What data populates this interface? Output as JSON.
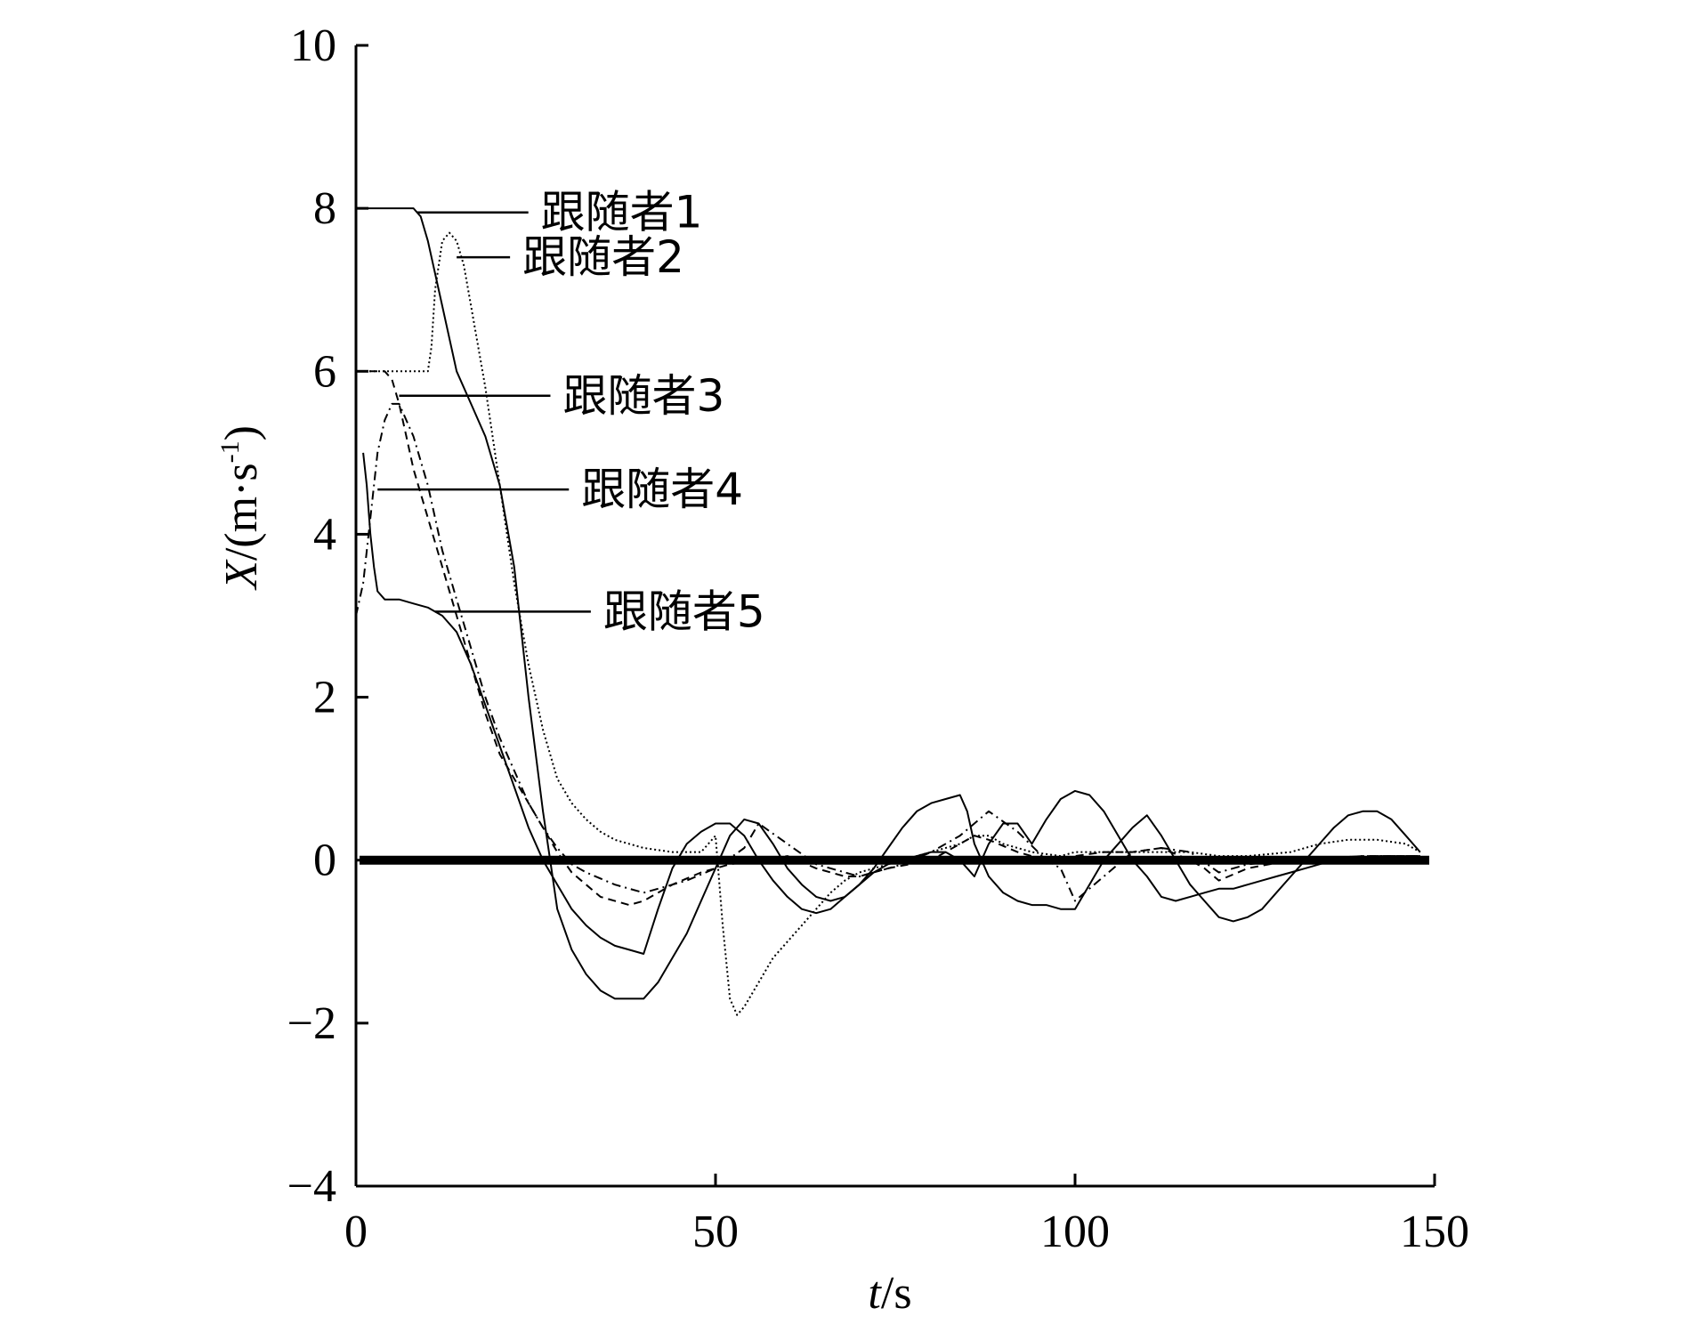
{
  "chart_data": {
    "type": "line",
    "title": "",
    "xlabel": {
      "italic": "t",
      "rest": "/s"
    },
    "ylabel": {
      "italic": "X",
      "rest": "/(m·s",
      "sup": "-1",
      "close": ")"
    },
    "xlim": [
      0,
      150
    ],
    "ylim": [
      -4,
      10
    ],
    "xticks": [
      0,
      50,
      100,
      150
    ],
    "xtick_labels": [
      "0",
      "50",
      "100",
      "150"
    ],
    "yticks": [
      -4,
      -2,
      0,
      2,
      4,
      6,
      8,
      10
    ],
    "ytick_labels": [
      "−4",
      "−2",
      "0",
      "2",
      "4",
      "6",
      "8",
      "10"
    ],
    "grid": false,
    "legend": "none",
    "reference_line": {
      "y": 0,
      "color": "#000000"
    },
    "series": [
      {
        "name": "跟随者1",
        "style": "solid",
        "x": [
          0,
          8,
          9,
          10,
          11,
          12,
          14,
          16,
          18,
          20,
          22,
          24,
          26,
          27,
          28,
          30,
          32,
          34,
          36,
          38,
          40,
          42,
          44,
          46,
          48,
          50,
          52,
          54,
          56,
          58,
          60,
          62,
          64,
          66,
          68,
          70,
          72,
          74,
          76,
          78,
          80,
          82,
          84,
          85,
          86,
          88,
          90,
          92,
          94,
          96,
          98,
          100,
          102,
          104,
          106,
          108,
          110,
          112,
          114,
          116,
          118,
          120,
          122,
          124,
          126,
          128,
          130,
          132,
          134,
          136,
          138,
          140,
          142,
          144,
          146,
          148
        ],
        "y": [
          8.0,
          8.0,
          7.9,
          7.6,
          7.2,
          6.8,
          6.0,
          5.6,
          5.2,
          4.6,
          3.6,
          2.0,
          0.6,
          0.0,
          -0.6,
          -1.1,
          -1.4,
          -1.6,
          -1.7,
          -1.7,
          -1.7,
          -1.5,
          -1.2,
          -0.9,
          -0.5,
          -0.1,
          0.3,
          0.5,
          0.45,
          0.2,
          -0.1,
          -0.3,
          -0.45,
          -0.5,
          -0.45,
          -0.3,
          -0.1,
          0.15,
          0.4,
          0.6,
          0.7,
          0.75,
          0.8,
          0.6,
          0.2,
          -0.2,
          -0.4,
          -0.5,
          -0.55,
          -0.55,
          -0.6,
          -0.6,
          -0.3,
          0.0,
          0.2,
          0.4,
          0.55,
          0.3,
          0.0,
          -0.3,
          -0.5,
          -0.7,
          -0.75,
          -0.7,
          -0.6,
          -0.4,
          -0.2,
          0.0,
          0.2,
          0.4,
          0.55,
          0.6,
          0.6,
          0.5,
          0.3,
          0.1
        ]
      },
      {
        "name": "跟随者2",
        "style": "dotted",
        "x": [
          0,
          10,
          10.5,
          11,
          12,
          13,
          14,
          15,
          16,
          18,
          20,
          22,
          24,
          26,
          28,
          30,
          32,
          34,
          36,
          38,
          40,
          44,
          48,
          50,
          51,
          52,
          53,
          54,
          56,
          58,
          60,
          62,
          64,
          66,
          68,
          70,
          72,
          74,
          76,
          78,
          80,
          84,
          86,
          88,
          90,
          94,
          98,
          100,
          104,
          108,
          112,
          116,
          120,
          124,
          130,
          134,
          138,
          142,
          146,
          148
        ],
        "y": [
          6.0,
          6.0,
          6.3,
          7.0,
          7.6,
          7.7,
          7.6,
          7.3,
          6.8,
          5.8,
          4.6,
          3.4,
          2.4,
          1.6,
          1.0,
          0.7,
          0.5,
          0.35,
          0.25,
          0.2,
          0.15,
          0.1,
          0.1,
          0.3,
          -0.8,
          -1.7,
          -1.9,
          -1.8,
          -1.5,
          -1.2,
          -1.0,
          -0.8,
          -0.6,
          -0.4,
          -0.25,
          -0.15,
          -0.1,
          -0.05,
          0.0,
          0.05,
          0.1,
          0.2,
          0.3,
          0.3,
          0.2,
          0.1,
          0.05,
          0.1,
          0.1,
          0.1,
          0.1,
          0.1,
          0.05,
          0.05,
          0.1,
          0.2,
          0.25,
          0.25,
          0.2,
          0.1
        ]
      },
      {
        "name": "跟随者3",
        "style": "dashed",
        "x": [
          0,
          4,
          5,
          6,
          7,
          8,
          10,
          12,
          14,
          16,
          18,
          20,
          22,
          24,
          26,
          28,
          30,
          34,
          38,
          40,
          44,
          48,
          52,
          56,
          60,
          64,
          68,
          70,
          74,
          80,
          84,
          86,
          88,
          92,
          96,
          100,
          104,
          108,
          112,
          116,
          118,
          120,
          124,
          130,
          140,
          148
        ],
        "y": [
          6.0,
          6.0,
          5.9,
          5.6,
          5.2,
          4.8,
          4.2,
          3.6,
          3.0,
          2.4,
          1.8,
          1.3,
          1.0,
          0.7,
          0.4,
          0.1,
          -0.15,
          -0.45,
          -0.55,
          -0.5,
          -0.3,
          -0.15,
          -0.05,
          0.0,
          0.05,
          -0.1,
          -0.2,
          -0.2,
          -0.1,
          0.0,
          0.2,
          0.3,
          0.25,
          0.1,
          0.0,
          0.05,
          0.1,
          0.1,
          0.15,
          0.0,
          -0.1,
          -0.25,
          -0.1,
          0.0,
          0.05,
          0.05
        ]
      },
      {
        "name": "跟随者4",
        "style": "dashdot",
        "x": [
          0,
          1,
          2,
          3,
          4,
          5,
          6,
          8,
          10,
          12,
          14,
          16,
          18,
          20,
          22,
          24,
          26,
          28,
          30,
          32,
          36,
          40,
          42,
          46,
          50,
          54,
          56,
          60,
          64,
          68,
          70,
          72,
          76,
          80,
          84,
          88,
          92,
          96,
          98,
          100,
          104,
          108,
          112,
          116,
          120,
          124,
          130,
          140,
          148
        ],
        "y": [
          3.0,
          3.4,
          4.2,
          5.0,
          5.4,
          5.6,
          5.6,
          5.2,
          4.6,
          3.8,
          3.2,
          2.6,
          2.0,
          1.5,
          1.1,
          0.7,
          0.4,
          0.15,
          -0.05,
          -0.15,
          -0.3,
          -0.4,
          -0.35,
          -0.25,
          -0.1,
          0.15,
          0.45,
          0.2,
          -0.05,
          -0.15,
          -0.2,
          -0.15,
          -0.05,
          0.1,
          0.3,
          0.6,
          0.35,
          0.0,
          -0.1,
          -0.5,
          -0.2,
          0.1,
          0.15,
          0.1,
          -0.15,
          -0.05,
          0.0,
          0.05,
          0.05
        ]
      },
      {
        "name": "跟随者5",
        "style": "solid",
        "x": [
          1,
          1.5,
          2,
          2.5,
          3,
          4,
          6,
          8,
          10,
          12,
          14,
          16,
          18,
          20,
          22,
          24,
          26,
          28,
          30,
          32,
          34,
          36,
          38,
          40,
          42,
          44,
          46,
          48,
          50,
          52,
          54,
          56,
          58,
          60,
          62,
          64,
          66,
          68,
          70,
          72,
          74,
          76,
          78,
          80,
          82,
          84,
          86,
          88,
          90,
          92,
          94,
          96,
          98,
          100,
          102,
          104,
          106,
          108,
          110,
          112,
          114,
          116,
          118,
          120,
          122,
          124,
          126,
          128,
          130,
          132,
          134,
          136,
          138,
          140,
          142,
          144,
          146,
          148
        ],
        "y": [
          5.0,
          4.6,
          4.0,
          3.6,
          3.3,
          3.2,
          3.2,
          3.15,
          3.1,
          3.0,
          2.8,
          2.4,
          1.9,
          1.4,
          0.9,
          0.4,
          0.0,
          -0.3,
          -0.6,
          -0.8,
          -0.95,
          -1.05,
          -1.1,
          -1.15,
          -0.6,
          -0.1,
          0.2,
          0.35,
          0.45,
          0.45,
          0.3,
          0.0,
          -0.25,
          -0.45,
          -0.6,
          -0.65,
          -0.6,
          -0.45,
          -0.3,
          -0.15,
          -0.05,
          0.0,
          0.05,
          0.1,
          0.1,
          0.0,
          -0.2,
          0.2,
          0.45,
          0.45,
          0.2,
          0.5,
          0.75,
          0.85,
          0.8,
          0.6,
          0.3,
          0.0,
          -0.2,
          -0.45,
          -0.5,
          -0.45,
          -0.4,
          -0.35,
          -0.35,
          -0.3,
          -0.25,
          -0.2,
          -0.15,
          -0.1,
          -0.05,
          0.0,
          0.0,
          0.0,
          0.05,
          0.05,
          0.05,
          0.05
        ]
      }
    ],
    "annotations": [
      {
        "text": "跟随者1",
        "x": 8.5,
        "y": 7.95
      },
      {
        "text": "跟随者2",
        "x": 14,
        "y": 7.4
      },
      {
        "text": "跟随者3",
        "x": 6,
        "y": 5.7
      },
      {
        "text": "跟随者4",
        "x": 3,
        "y": 4.55
      },
      {
        "text": "跟随者5",
        "x": 11,
        "y": 3.05
      }
    ]
  }
}
